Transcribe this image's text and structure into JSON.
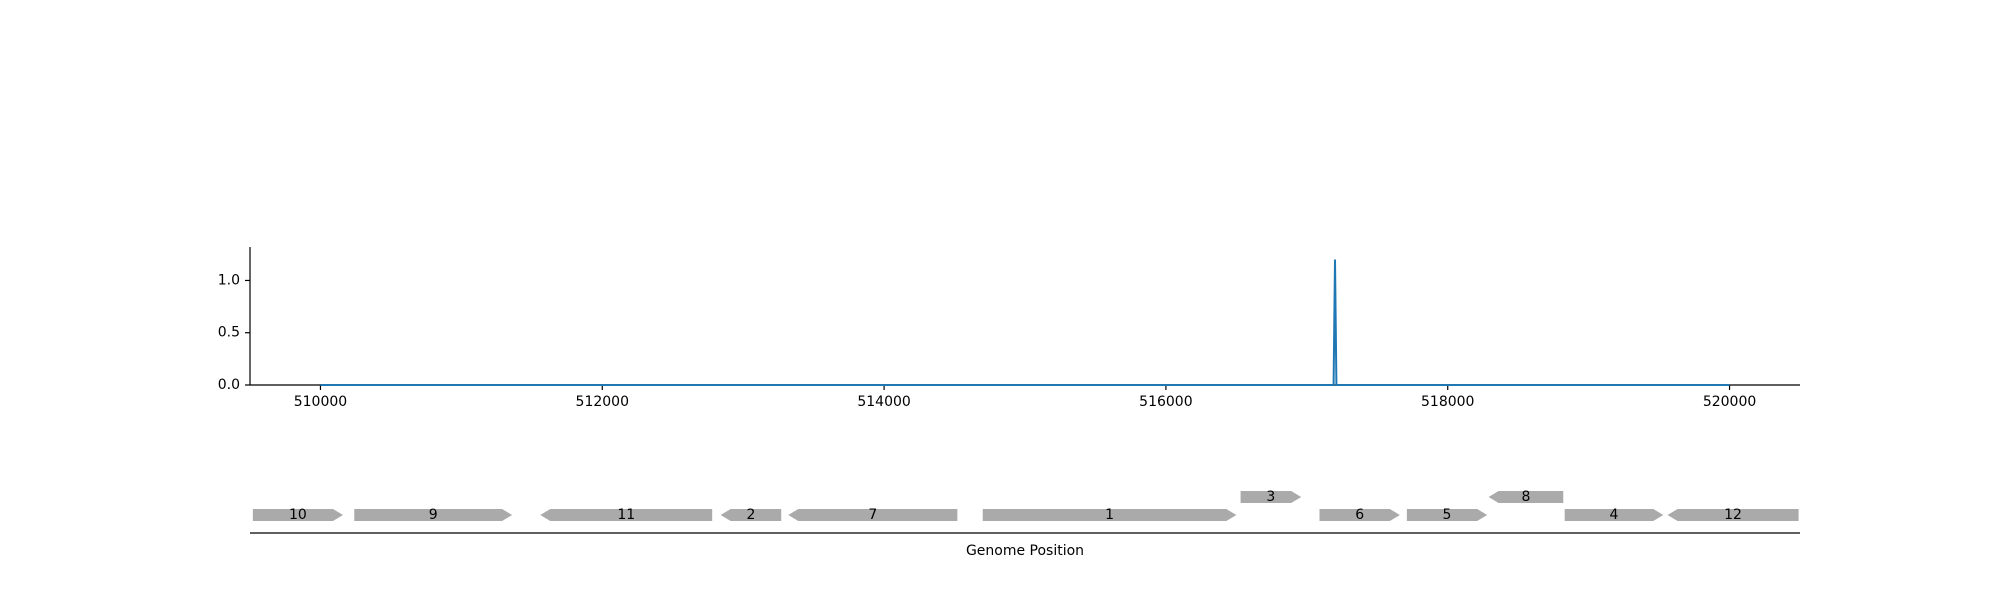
{
  "chart_data": [
    {
      "type": "line",
      "title": "",
      "xlabel": "",
      "ylabel": "",
      "xlim": [
        509500,
        520500
      ],
      "ylim": [
        0,
        1.32
      ],
      "x_ticks": [
        510000,
        512000,
        514000,
        516000,
        518000,
        520000
      ],
      "x_tick_labels": [
        "510000",
        "512000",
        "514000",
        "516000",
        "518000",
        "520000"
      ],
      "y_ticks": [
        0.0,
        0.5,
        1.0
      ],
      "y_tick_labels": [
        "0.0",
        "0.5",
        "1.0"
      ],
      "grid": false,
      "series": [
        {
          "color": "#1f77b4",
          "x": [
            510000,
            517190,
            517200,
            517210,
            520000
          ],
          "y": [
            0,
            0,
            1.2,
            0,
            0
          ]
        }
      ]
    },
    {
      "type": "gene-map",
      "xlabel": "Genome Position",
      "xlim": [
        509500,
        520500
      ],
      "gene_color": "#aaaaaa",
      "genes": [
        {
          "label": "10",
          "start": 509520,
          "end": 510160,
          "strand": "+",
          "track": 0
        },
        {
          "label": "9",
          "start": 510240,
          "end": 511360,
          "strand": "+",
          "track": 0
        },
        {
          "label": "11",
          "start": 511560,
          "end": 512780,
          "strand": "-",
          "track": 0
        },
        {
          "label": "2",
          "start": 512840,
          "end": 513270,
          "strand": "-",
          "track": 0
        },
        {
          "label": "7",
          "start": 513320,
          "end": 514520,
          "strand": "-",
          "track": 0
        },
        {
          "label": "1",
          "start": 514700,
          "end": 516500,
          "strand": "+",
          "track": 0
        },
        {
          "label": "3",
          "start": 516530,
          "end": 516960,
          "strand": "+",
          "track": 1
        },
        {
          "label": "6",
          "start": 517090,
          "end": 517660,
          "strand": "+",
          "track": 0
        },
        {
          "label": "5",
          "start": 517710,
          "end": 518280,
          "strand": "+",
          "track": 0
        },
        {
          "label": "8",
          "start": 518290,
          "end": 518820,
          "strand": "-",
          "track": 1
        },
        {
          "label": "4",
          "start": 518830,
          "end": 519530,
          "strand": "+",
          "track": 0
        },
        {
          "label": "12",
          "start": 519560,
          "end": 520490,
          "strand": "-",
          "track": 0
        }
      ]
    }
  ]
}
